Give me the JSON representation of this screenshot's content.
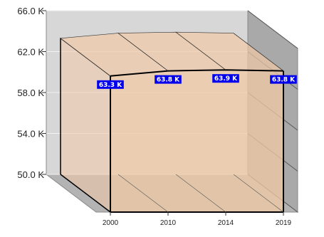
{
  "chart_data": {
    "type": "area",
    "title": "",
    "xlabel": "",
    "ylabel": "",
    "categories": [
      "2000",
      "2010",
      "2014",
      "2019"
    ],
    "series": [
      {
        "values": [
          63.3,
          63.8,
          63.9,
          63.8
        ],
        "data_labels": [
          "63.3 K",
          "63.8 K",
          "63.9 K",
          "63.8 K"
        ]
      }
    ],
    "ylim": [
      50.0,
      66.0
    ],
    "yticks": [
      50.0,
      54.0,
      58.0,
      62.0,
      66.0
    ],
    "ytick_labels": [
      "50.0 K",
      "54.0 K",
      "58.0 K",
      "62.0 K",
      "66.0 K"
    ],
    "grid": true,
    "legend": "none",
    "three_d": true,
    "colors": {
      "fill": "#f2c9a6",
      "label_bg": "#0000ee",
      "back_wall": "#d7d7d7",
      "side_wall": "#a9a9a9",
      "floor": "#b3b3b3"
    }
  }
}
